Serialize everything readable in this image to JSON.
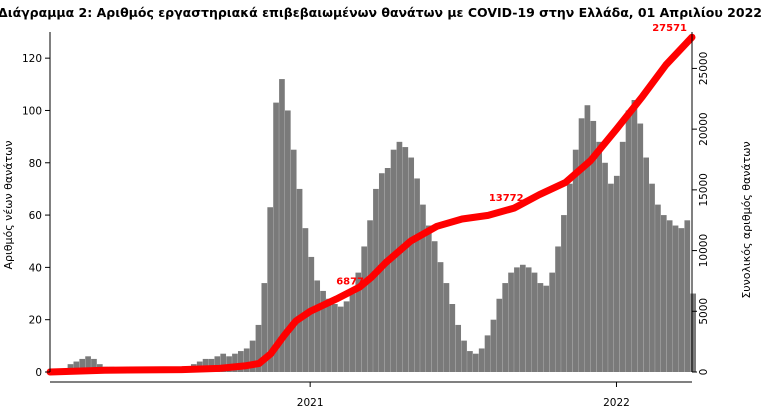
{
  "chart_data": {
    "type": "bar",
    "title": "Διάγραμμα 2: Αριθμός εργαστηριακά επιβεβαιωμένων θανάτων με COVID-19 στην Ελλάδα, 01 Απριλίου 2022",
    "ylabel": "Αριθμός νέων θανάτων",
    "y2label": "Συνολικός αριθμός θανάτων",
    "xlabel": "",
    "ylim": [
      0,
      130
    ],
    "y2lim": [
      0,
      28000
    ],
    "yticks": [
      0,
      20,
      40,
      60,
      80,
      100,
      120
    ],
    "y2ticks": [
      0,
      5000,
      10000,
      15000,
      20000,
      25000
    ],
    "xticks": [
      {
        "label": "2021",
        "date": "2021-01-01"
      },
      {
        "label": "2022",
        "date": "2022-01-01"
      }
    ],
    "x_range": [
      "2020-02-26",
      "2022-04-01"
    ],
    "colors": {
      "bars": "#7a7a7a",
      "cumulative_line": "#ff0000",
      "point_labels": "#ff0000"
    },
    "grid": false,
    "legend": "none",
    "series": [
      {
        "type": "bar",
        "axis": "left",
        "weekly": [
          {
            "week_start": "2020-02-26",
            "value": 0
          },
          {
            "week_start": "2020-03-04",
            "value": 0
          },
          {
            "week_start": "2020-03-11",
            "value": 1
          },
          {
            "week_start": "2020-03-18",
            "value": 3
          },
          {
            "week_start": "2020-03-25",
            "value": 4
          },
          {
            "week_start": "2020-04-01",
            "value": 5
          },
          {
            "week_start": "2020-04-08",
            "value": 6
          },
          {
            "week_start": "2020-04-15",
            "value": 5
          },
          {
            "week_start": "2020-04-22",
            "value": 3
          },
          {
            "week_start": "2020-04-29",
            "value": 2
          },
          {
            "week_start": "2020-05-06",
            "value": 2
          },
          {
            "week_start": "2020-05-13",
            "value": 1
          },
          {
            "week_start": "2020-05-20",
            "value": 1
          },
          {
            "week_start": "2020-05-27",
            "value": 1
          },
          {
            "week_start": "2020-06-03",
            "value": 1
          },
          {
            "week_start": "2020-06-10",
            "value": 1
          },
          {
            "week_start": "2020-06-17",
            "value": 0
          },
          {
            "week_start": "2020-06-24",
            "value": 1
          },
          {
            "week_start": "2020-07-01",
            "value": 1
          },
          {
            "week_start": "2020-07-08",
            "value": 1
          },
          {
            "week_start": "2020-07-15",
            "value": 1
          },
          {
            "week_start": "2020-07-22",
            "value": 1
          },
          {
            "week_start": "2020-07-29",
            "value": 1
          },
          {
            "week_start": "2020-08-05",
            "value": 2
          },
          {
            "week_start": "2020-08-12",
            "value": 3
          },
          {
            "week_start": "2020-08-19",
            "value": 4
          },
          {
            "week_start": "2020-08-26",
            "value": 5
          },
          {
            "week_start": "2020-09-02",
            "value": 5
          },
          {
            "week_start": "2020-09-09",
            "value": 6
          },
          {
            "week_start": "2020-09-16",
            "value": 7
          },
          {
            "week_start": "2020-09-23",
            "value": 6
          },
          {
            "week_start": "2020-09-30",
            "value": 7
          },
          {
            "week_start": "2020-10-07",
            "value": 8
          },
          {
            "week_start": "2020-10-14",
            "value": 9
          },
          {
            "week_start": "2020-10-21",
            "value": 12
          },
          {
            "week_start": "2020-10-28",
            "value": 18
          },
          {
            "week_start": "2020-11-04",
            "value": 34
          },
          {
            "week_start": "2020-11-11",
            "value": 63
          },
          {
            "week_start": "2020-11-18",
            "value": 103
          },
          {
            "week_start": "2020-11-25",
            "value": 112
          },
          {
            "week_start": "2020-12-02",
            "value": 100
          },
          {
            "week_start": "2020-12-09",
            "value": 85
          },
          {
            "week_start": "2020-12-16",
            "value": 70
          },
          {
            "week_start": "2020-12-23",
            "value": 55
          },
          {
            "week_start": "2020-12-30",
            "value": 44
          },
          {
            "week_start": "2021-01-06",
            "value": 35
          },
          {
            "week_start": "2021-01-13",
            "value": 31
          },
          {
            "week_start": "2021-01-20",
            "value": 28
          },
          {
            "week_start": "2021-01-27",
            "value": 26
          },
          {
            "week_start": "2021-02-03",
            "value": 25
          },
          {
            "week_start": "2021-02-10",
            "value": 27
          },
          {
            "week_start": "2021-02-17",
            "value": 30
          },
          {
            "week_start": "2021-02-24",
            "value": 38
          },
          {
            "week_start": "2021-03-03",
            "value": 48
          },
          {
            "week_start": "2021-03-10",
            "value": 58
          },
          {
            "week_start": "2021-03-17",
            "value": 70
          },
          {
            "week_start": "2021-03-24",
            "value": 76
          },
          {
            "week_start": "2021-03-31",
            "value": 78
          },
          {
            "week_start": "2021-04-07",
            "value": 85
          },
          {
            "week_start": "2021-04-14",
            "value": 88
          },
          {
            "week_start": "2021-04-21",
            "value": 86
          },
          {
            "week_start": "2021-04-28",
            "value": 82
          },
          {
            "week_start": "2021-05-05",
            "value": 74
          },
          {
            "week_start": "2021-05-12",
            "value": 64
          },
          {
            "week_start": "2021-05-19",
            "value": 56
          },
          {
            "week_start": "2021-05-26",
            "value": 50
          },
          {
            "week_start": "2021-06-02",
            "value": 42
          },
          {
            "week_start": "2021-06-09",
            "value": 34
          },
          {
            "week_start": "2021-06-16",
            "value": 26
          },
          {
            "week_start": "2021-06-23",
            "value": 18
          },
          {
            "week_start": "2021-06-30",
            "value": 12
          },
          {
            "week_start": "2021-07-07",
            "value": 8
          },
          {
            "week_start": "2021-07-14",
            "value": 7
          },
          {
            "week_start": "2021-07-21",
            "value": 9
          },
          {
            "week_start": "2021-07-28",
            "value": 14
          },
          {
            "week_start": "2021-08-04",
            "value": 20
          },
          {
            "week_start": "2021-08-11",
            "value": 28
          },
          {
            "week_start": "2021-08-18",
            "value": 34
          },
          {
            "week_start": "2021-08-25",
            "value": 38
          },
          {
            "week_start": "2021-09-01",
            "value": 40
          },
          {
            "week_start": "2021-09-08",
            "value": 41
          },
          {
            "week_start": "2021-09-15",
            "value": 40
          },
          {
            "week_start": "2021-09-22",
            "value": 38
          },
          {
            "week_start": "2021-09-29",
            "value": 34
          },
          {
            "week_start": "2021-10-06",
            "value": 33
          },
          {
            "week_start": "2021-10-13",
            "value": 38
          },
          {
            "week_start": "2021-10-20",
            "value": 48
          },
          {
            "week_start": "2021-10-27",
            "value": 60
          },
          {
            "week_start": "2021-11-03",
            "value": 72
          },
          {
            "week_start": "2021-11-10",
            "value": 85
          },
          {
            "week_start": "2021-11-17",
            "value": 97
          },
          {
            "week_start": "2021-11-24",
            "value": 102
          },
          {
            "week_start": "2021-12-01",
            "value": 96
          },
          {
            "week_start": "2021-12-08",
            "value": 88
          },
          {
            "week_start": "2021-12-15",
            "value": 80
          },
          {
            "week_start": "2021-12-22",
            "value": 72
          },
          {
            "week_start": "2021-12-29",
            "value": 75
          },
          {
            "week_start": "2022-01-05",
            "value": 88
          },
          {
            "week_start": "2022-01-12",
            "value": 100
          },
          {
            "week_start": "2022-01-19",
            "value": 104
          },
          {
            "week_start": "2022-01-26",
            "value": 95
          },
          {
            "week_start": "2022-02-02",
            "value": 82
          },
          {
            "week_start": "2022-02-09",
            "value": 72
          },
          {
            "week_start": "2022-02-16",
            "value": 64
          },
          {
            "week_start": "2022-02-23",
            "value": 60
          },
          {
            "week_start": "2022-03-02",
            "value": 58
          },
          {
            "week_start": "2022-03-09",
            "value": 56
          },
          {
            "week_start": "2022-03-16",
            "value": 55
          },
          {
            "week_start": "2022-03-23",
            "value": 58
          },
          {
            "week_start": "2022-03-30",
            "value": 30
          }
        ]
      },
      {
        "type": "line",
        "axis": "right",
        "points": [
          {
            "date": "2020-02-26",
            "value": 0
          },
          {
            "date": "2020-05-01",
            "value": 150
          },
          {
            "date": "2020-08-01",
            "value": 200
          },
          {
            "date": "2020-09-15",
            "value": 300
          },
          {
            "date": "2020-10-15",
            "value": 500
          },
          {
            "date": "2020-11-01",
            "value": 700
          },
          {
            "date": "2020-11-15",
            "value": 1500
          },
          {
            "date": "2020-12-01",
            "value": 3000
          },
          {
            "date": "2020-12-15",
            "value": 4200
          },
          {
            "date": "2021-01-01",
            "value": 5000
          },
          {
            "date": "2021-02-01",
            "value": 6000
          },
          {
            "date": "2021-03-01",
            "value": 7000
          },
          {
            "date": "2021-03-15",
            "value": 7800
          },
          {
            "date": "2021-04-01",
            "value": 9000
          },
          {
            "date": "2021-05-01",
            "value": 10800
          },
          {
            "date": "2021-06-01",
            "value": 12000
          },
          {
            "date": "2021-07-01",
            "value": 12600
          },
          {
            "date": "2021-08-01",
            "value": 12900
          },
          {
            "date": "2021-09-01",
            "value": 13500
          },
          {
            "date": "2021-10-01",
            "value": 14600
          },
          {
            "date": "2021-11-01",
            "value": 15600
          },
          {
            "date": "2021-12-01",
            "value": 17400
          },
          {
            "date": "2022-01-01",
            "value": 20000
          },
          {
            "date": "2022-02-01",
            "value": 22700
          },
          {
            "date": "2022-03-01",
            "value": 25300
          },
          {
            "date": "2022-04-01",
            "value": 27571
          }
        ]
      }
    ],
    "annotations": [
      {
        "label": "27571",
        "date": "2022-04-01",
        "value": 27571
      },
      {
        "label": "13772",
        "date": "2021-08-25",
        "value": 13772
      },
      {
        "label": "6877",
        "date": "2021-02-20",
        "value": 6877
      }
    ]
  }
}
